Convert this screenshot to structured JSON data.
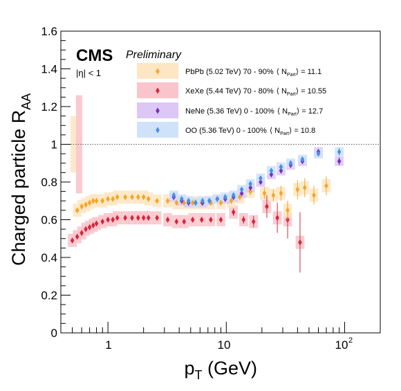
{
  "chart_data": {
    "type": "scatter",
    "experiment": "CMS",
    "status": "Preliminary",
    "annotation": "|η| < 1",
    "xlabel_main": "p",
    "xlabel_sub": "T",
    "xlabel_unit": " (GeV)",
    "ylabel_main": "Charged particle R",
    "ylabel_sub": "AA",
    "x_scale": "log",
    "xlim": [
      0.4,
      200
    ],
    "ylim": [
      0,
      1.6
    ],
    "x_tick_labels": [
      "1",
      "10",
      "10",
      "2"
    ],
    "y_ticks": [
      {
        "value": 0,
        "label": "0"
      },
      {
        "value": 0.2,
        "label": "0.2"
      },
      {
        "value": 0.4,
        "label": "0.4"
      },
      {
        "value": 0.6,
        "label": "0.6"
      },
      {
        "value": 0.8,
        "label": "0.8"
      },
      {
        "value": 1.0,
        "label": "1"
      },
      {
        "value": 1.2,
        "label": "1.2"
      },
      {
        "value": 1.4,
        "label": "1.4"
      },
      {
        "value": 1.6,
        "label": "1.6"
      }
    ],
    "reference_line": 1.0,
    "grid": false,
    "legend_position": "top-right",
    "series": [
      {
        "name": "PbPb",
        "legend_label": "PbPb (5.02 TeV) 70 - 90%",
        "npart_value": "= 11.1",
        "color": "#f5a623",
        "band_color": "#fde6c4",
        "points": [
          {
            "x": 0.55,
            "y": 0.65,
            "err": 0.01
          },
          {
            "x": 0.6,
            "y": 0.67,
            "err": 0.01
          },
          {
            "x": 0.65,
            "y": 0.68,
            "err": 0.01
          },
          {
            "x": 0.7,
            "y": 0.69,
            "err": 0.01
          },
          {
            "x": 0.75,
            "y": 0.7,
            "err": 0.01
          },
          {
            "x": 0.8,
            "y": 0.7,
            "err": 0.01
          },
          {
            "x": 0.9,
            "y": 0.7,
            "err": 0.01
          },
          {
            "x": 1.0,
            "y": 0.71,
            "err": 0.01
          },
          {
            "x": 1.1,
            "y": 0.71,
            "err": 0.01
          },
          {
            "x": 1.2,
            "y": 0.72,
            "err": 0.01
          },
          {
            "x": 1.4,
            "y": 0.72,
            "err": 0.01
          },
          {
            "x": 1.6,
            "y": 0.72,
            "err": 0.01
          },
          {
            "x": 1.8,
            "y": 0.72,
            "err": 0.01
          },
          {
            "x": 2.0,
            "y": 0.72,
            "err": 0.01
          },
          {
            "x": 2.2,
            "y": 0.71,
            "err": 0.01
          },
          {
            "x": 2.6,
            "y": 0.7,
            "err": 0.01
          },
          {
            "x": 3.2,
            "y": 0.7,
            "err": 0.01
          },
          {
            "x": 3.8,
            "y": 0.69,
            "err": 0.01
          },
          {
            "x": 4.4,
            "y": 0.69,
            "err": 0.01
          },
          {
            "x": 5.2,
            "y": 0.69,
            "err": 0.01
          },
          {
            "x": 6.2,
            "y": 0.69,
            "err": 0.01
          },
          {
            "x": 7.4,
            "y": 0.69,
            "err": 0.01
          },
          {
            "x": 9.0,
            "y": 0.69,
            "err": 0.01
          },
          {
            "x": 11,
            "y": 0.7,
            "err": 0.01
          },
          {
            "x": 13,
            "y": 0.72,
            "err": 0.01
          },
          {
            "x": 16,
            "y": 0.75,
            "err": 0.02
          },
          {
            "x": 21,
            "y": 0.74,
            "err": 0.03
          },
          {
            "x": 25,
            "y": 0.73,
            "err": 0.03
          },
          {
            "x": 29,
            "y": 0.74,
            "err": 0.04
          },
          {
            "x": 33,
            "y": 0.65,
            "err": 0.05
          },
          {
            "x": 40,
            "y": 0.76,
            "err": 0.05
          },
          {
            "x": 46,
            "y": 0.77,
            "err": 0.05
          },
          {
            "x": 55,
            "y": 0.73,
            "err": 0.05
          },
          {
            "x": 70,
            "y": 0.78,
            "err": 0.05
          }
        ]
      },
      {
        "name": "XeXe",
        "legend_label": "XeXe (5.44 TeV) 70 - 80%",
        "npart_value": "= 10.55",
        "color": "#d7263d",
        "band_color": "#f9c4cb",
        "points": [
          {
            "x": 0.5,
            "y": 0.49,
            "err": 0.01
          },
          {
            "x": 0.55,
            "y": 0.51,
            "err": 0.01
          },
          {
            "x": 0.6,
            "y": 0.53,
            "err": 0.01
          },
          {
            "x": 0.65,
            "y": 0.55,
            "err": 0.01
          },
          {
            "x": 0.7,
            "y": 0.56,
            "err": 0.01
          },
          {
            "x": 0.75,
            "y": 0.57,
            "err": 0.01
          },
          {
            "x": 0.8,
            "y": 0.58,
            "err": 0.01
          },
          {
            "x": 0.9,
            "y": 0.59,
            "err": 0.01
          },
          {
            "x": 1.0,
            "y": 0.6,
            "err": 0.01
          },
          {
            "x": 1.1,
            "y": 0.6,
            "err": 0.01
          },
          {
            "x": 1.2,
            "y": 0.61,
            "err": 0.01
          },
          {
            "x": 1.4,
            "y": 0.61,
            "err": 0.01
          },
          {
            "x": 1.6,
            "y": 0.61,
            "err": 0.01
          },
          {
            "x": 1.8,
            "y": 0.61,
            "err": 0.01
          },
          {
            "x": 2.0,
            "y": 0.61,
            "err": 0.01
          },
          {
            "x": 2.2,
            "y": 0.61,
            "err": 0.01
          },
          {
            "x": 2.6,
            "y": 0.61,
            "err": 0.01
          },
          {
            "x": 3.2,
            "y": 0.6,
            "err": 0.01
          },
          {
            "x": 3.8,
            "y": 0.59,
            "err": 0.01
          },
          {
            "x": 4.4,
            "y": 0.59,
            "err": 0.01
          },
          {
            "x": 5.2,
            "y": 0.6,
            "err": 0.01
          },
          {
            "x": 6.2,
            "y": 0.6,
            "err": 0.01
          },
          {
            "x": 7.4,
            "y": 0.6,
            "err": 0.01
          },
          {
            "x": 9.0,
            "y": 0.6,
            "err": 0.01
          },
          {
            "x": 11.5,
            "y": 0.64,
            "err": 0.02
          },
          {
            "x": 14,
            "y": 0.6,
            "err": 0.02
          },
          {
            "x": 17,
            "y": 0.59,
            "err": 0.03
          },
          {
            "x": 22,
            "y": 0.67,
            "err": 0.06
          },
          {
            "x": 27,
            "y": 0.61,
            "err": 0.08
          },
          {
            "x": 33,
            "y": 0.6,
            "err": 0.1
          },
          {
            "x": 42,
            "y": 0.48,
            "err": 0.16
          }
        ]
      },
      {
        "name": "NeNe",
        "legend_label": "NeNe (5.36 TeV) 0 - 100%",
        "npart_value": "= 12.7",
        "color": "#7b2cbf",
        "band_color": "#dcc7f5",
        "points": [
          {
            "x": 3.6,
            "y": 0.72,
            "err": 0.01
          },
          {
            "x": 4.2,
            "y": 0.7,
            "err": 0.01
          },
          {
            "x": 4.8,
            "y": 0.69,
            "err": 0.01
          },
          {
            "x": 5.5,
            "y": 0.69,
            "err": 0.01
          },
          {
            "x": 6.3,
            "y": 0.69,
            "err": 0.01
          },
          {
            "x": 7.2,
            "y": 0.7,
            "err": 0.01
          },
          {
            "x": 8.4,
            "y": 0.71,
            "err": 0.01
          },
          {
            "x": 9.8,
            "y": 0.71,
            "err": 0.01
          },
          {
            "x": 11.5,
            "y": 0.72,
            "err": 0.01
          },
          {
            "x": 13.5,
            "y": 0.74,
            "err": 0.01
          },
          {
            "x": 16,
            "y": 0.77,
            "err": 0.01
          },
          {
            "x": 19.5,
            "y": 0.8,
            "err": 0.01
          },
          {
            "x": 24,
            "y": 0.84,
            "err": 0.01
          },
          {
            "x": 29,
            "y": 0.86,
            "err": 0.01
          },
          {
            "x": 35,
            "y": 0.89,
            "err": 0.01
          },
          {
            "x": 44,
            "y": 0.91,
            "err": 0.01
          },
          {
            "x": 60,
            "y": 0.96,
            "err": 0.01
          },
          {
            "x": 90,
            "y": 0.91,
            "err": 0.02
          }
        ]
      },
      {
        "name": "OO",
        "legend_label": "OO   (5.36 TeV) 0 - 100%",
        "npart_value": "= 10.8",
        "color": "#4a90e2",
        "band_color": "#cfe2fa",
        "points": [
          {
            "x": 3.6,
            "y": 0.73,
            "err": 0.01
          },
          {
            "x": 4.2,
            "y": 0.71,
            "err": 0.01
          },
          {
            "x": 4.8,
            "y": 0.7,
            "err": 0.01
          },
          {
            "x": 5.5,
            "y": 0.69,
            "err": 0.01
          },
          {
            "x": 6.3,
            "y": 0.7,
            "err": 0.01
          },
          {
            "x": 7.2,
            "y": 0.7,
            "err": 0.01
          },
          {
            "x": 8.4,
            "y": 0.71,
            "err": 0.01
          },
          {
            "x": 9.8,
            "y": 0.72,
            "err": 0.01
          },
          {
            "x": 11.5,
            "y": 0.73,
            "err": 0.01
          },
          {
            "x": 13.5,
            "y": 0.76,
            "err": 0.01
          },
          {
            "x": 16,
            "y": 0.79,
            "err": 0.01
          },
          {
            "x": 19.5,
            "y": 0.82,
            "err": 0.01
          },
          {
            "x": 24,
            "y": 0.86,
            "err": 0.01
          },
          {
            "x": 29,
            "y": 0.88,
            "err": 0.01
          },
          {
            "x": 35,
            "y": 0.9,
            "err": 0.01
          },
          {
            "x": 44,
            "y": 0.92,
            "err": 0.01
          },
          {
            "x": 60,
            "y": 0.95,
            "err": 0.01
          },
          {
            "x": 90,
            "y": 0.96,
            "err": 0.02
          }
        ]
      }
    ],
    "normalization_bands": [
      {
        "name": "PbPb",
        "y_low": 0.85,
        "y_high": 1.15
      },
      {
        "name": "XeXe",
        "y_low": 0.74,
        "y_high": 1.26
      }
    ]
  }
}
